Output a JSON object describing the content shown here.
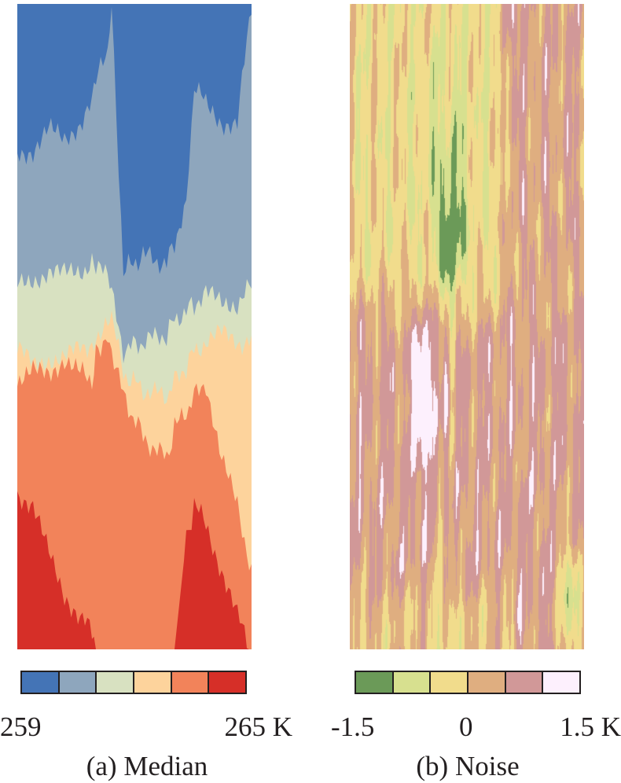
{
  "chart_data": [
    {
      "type": "heatmap",
      "caption": "(a) Median",
      "colorbar": {
        "colors": [
          "#4474b6",
          "#8ea6bd",
          "#d8e1c1",
          "#fdd39c",
          "#f2835a",
          "#d62f28"
        ],
        "tick_labels": [
          "259",
          "265 K"
        ],
        "range": [
          259,
          265
        ],
        "unit": "K"
      }
    },
    {
      "type": "heatmap",
      "caption": "(b) Noise",
      "colorbar": {
        "colors": [
          "#6b9a58",
          "#d7e08f",
          "#f1dc8c",
          "#dfae80",
          "#d19898",
          "#fdf0fd"
        ],
        "tick_labels": [
          "-1.5",
          "0",
          "1.5 K"
        ],
        "range": [
          -1.5,
          1.5
        ],
        "unit": "K"
      }
    }
  ]
}
